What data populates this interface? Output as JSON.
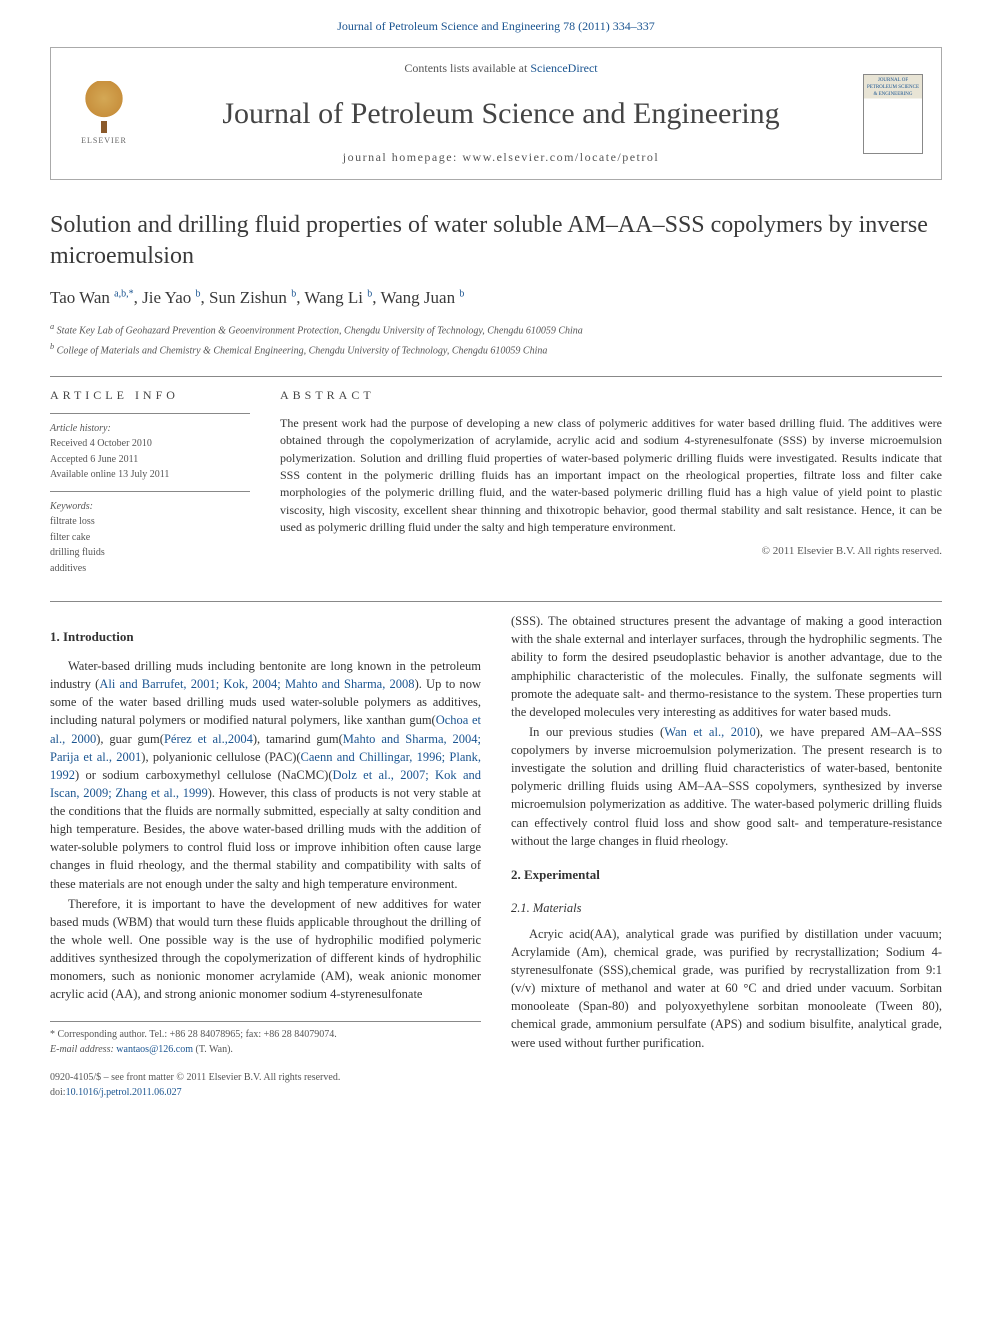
{
  "topLink": {
    "prefix": "",
    "citation": "Journal of Petroleum Science and Engineering 78 (2011) 334–337"
  },
  "header": {
    "contentsPrefix": "Contents lists available at ",
    "contentsLink": "ScienceDirect",
    "journalName": "Journal of Petroleum Science and Engineering",
    "homepagePrefix": "journal homepage: ",
    "homepageUrl": "www.elsevier.com/locate/petrol",
    "publisherLogoLabel": "ELSEVIER",
    "coverLabel": "JOURNAL OF PETROLEUM SCIENCE & ENGINEERING"
  },
  "article": {
    "title": "Solution and drilling fluid properties of water soluble AM–AA–SSS copolymers by inverse microemulsion",
    "authors": [
      {
        "name": "Tao Wan",
        "sup": "a,b,",
        "star": "*"
      },
      {
        "name": "Jie Yao",
        "sup": "b"
      },
      {
        "name": "Sun Zishun",
        "sup": "b"
      },
      {
        "name": "Wang Li",
        "sup": "b"
      },
      {
        "name": "Wang Juan",
        "sup": "b"
      }
    ],
    "affiliations": [
      {
        "sup": "a",
        "text": "State Key Lab of Geohazard Prevention & Geoenvironment Protection, Chengdu University of Technology, Chengdu 610059 China"
      },
      {
        "sup": "b",
        "text": "College of Materials and Chemistry & Chemical Engineering, Chengdu University of Technology, Chengdu 610059 China"
      }
    ]
  },
  "meta": {
    "articleInfoHead": "ARTICLE INFO",
    "historyLabel": "Article history:",
    "received": "Received 4 October 2010",
    "accepted": "Accepted 6 June 2011",
    "online": "Available online 13 July 2011",
    "keywordsLabel": "Keywords:",
    "keywords": [
      "filtrate loss",
      "filter cake",
      "drilling fluids",
      "additives"
    ]
  },
  "abstract": {
    "head": "ABSTRACT",
    "text": "The present work had the purpose of developing a new class of polymeric additives for water based drilling fluid. The additives were obtained through the copolymerization of acrylamide, acrylic acid and sodium 4-styrenesulfonate (SSS) by inverse microemulsion polymerization. Solution and drilling fluid properties of water-based polymeric drilling fluids were investigated. Results indicate that SSS content in the polymeric drilling fluids has an important impact on the rheological properties, filtrate loss and filter cake morphologies of the polymeric drilling fluid, and the water-based polymeric drilling fluid has a high value of yield point to plastic viscosity, high viscosity, excellent shear thinning and thixotropic behavior, good thermal stability and salt resistance. Hence, it can be used as polymeric drilling fluid under the salty and high temperature environment.",
    "copyright": "© 2011 Elsevier B.V. All rights reserved."
  },
  "sections": {
    "introHead": "1. Introduction",
    "intro_p1_a": "Water-based drilling muds including bentonite are long known in the petroleum industry (",
    "intro_p1_cite1": "Ali and Barrufet, 2001; Kok, 2004; Mahto and Sharma, 2008",
    "intro_p1_b": "). Up to now some of the water based drilling muds used water-soluble polymers as additives, including natural polymers or modified natural polymers, like xanthan gum(",
    "intro_p1_cite2": "Ochoa et al., 2000",
    "intro_p1_c": "), guar gum(",
    "intro_p1_cite3": "Pérez et al.,2004",
    "intro_p1_d": "), tamarind gum(",
    "intro_p1_cite4": "Mahto and Sharma, 2004; Parija et al., 2001",
    "intro_p1_e": "), polyanionic cellulose (PAC)(",
    "intro_p1_cite5": "Caenn and Chillingar, 1996; Plank, 1992",
    "intro_p1_f": ") or sodium carboxymethyl cellulose (NaCMC)(",
    "intro_p1_cite6": "Dolz et al., 2007; Kok and Iscan, 2009; Zhang et al., 1999",
    "intro_p1_g": "). However, this class of products is not very stable at the conditions that the fluids are normally submitted, especially at salty condition and high temperature. Besides, the above water-based drilling muds with the addition of water-soluble polymers to control fluid loss or improve inhibition often cause large changes in fluid rheology, and the thermal stability and compatibility with salts of these materials are not enough under the salty and high temperature environment.",
    "intro_p2": "Therefore, it is important to have the development of new additives for water based muds (WBM) that would turn these fluids applicable throughout the drilling of the whole well. One possible way is the use of hydrophilic modified polymeric additives synthesized through the copolymerization of different kinds of hydrophilic monomers, such as nonionic monomer acrylamide (AM), weak anionic monomer acrylic acid (AA), and strong anionic monomer sodium 4-styrenesulfonate",
    "intro_p2b": "(SSS). The obtained structures present the advantage of making a good interaction with the shale external and interlayer surfaces, through the hydrophilic segments. The ability to form the desired pseudoplastic behavior is another advantage, due to the amphiphilic characteristic of the molecules. Finally, the sulfonate segments will promote the adequate salt- and thermo-resistance to the system. These properties turn the developed molecules very interesting as additives for water based muds.",
    "intro_p3_a": "In our previous studies (",
    "intro_p3_cite": "Wan et al., 2010",
    "intro_p3_b": "), we have prepared AM–AA–SSS copolymers by inverse microemulsion polymerization. The present research is to investigate the solution and drilling fluid characteristics of water-based, bentonite polymeric drilling fluids using AM–AA–SSS copolymers, synthesized by inverse microemulsion polymerization as additive. The water-based polymeric drilling fluids can effectively control fluid loss and show good salt- and temperature-resistance without the large changes in fluid rheology.",
    "expHead": "2. Experimental",
    "matHead": "2.1. Materials",
    "mat_p1": "Acryic acid(AA), analytical grade was purified by distillation under vacuum; Acrylamide (Am), chemical grade, was purified by recrystallization; Sodium 4-styrenesulfonate (SSS),chemical grade, was purified by recrystallization from 9:1 (v/v) mixture of methanol and water at 60 °C and dried under vacuum. Sorbitan monooleate (Span-80) and polyoxyethylene sorbitan monooleate (Tween 80), chemical grade, ammonium persulfate (APS) and sodium bisulfite, analytical grade, were used without further purification."
  },
  "footnote": {
    "corrLabel": "* Corresponding author. Tel.: +86 28 84078965; fax: +86 28 84079074.",
    "emailLabel": "E-mail address: ",
    "email": "wantaos@126.com",
    "emailSuffix": " (T. Wan)."
  },
  "bottom": {
    "front": "0920-4105/$ – see front matter © 2011 Elsevier B.V. All rights reserved.",
    "doiLabel": "doi:",
    "doi": "10.1016/j.petrol.2011.06.027"
  },
  "colors": {
    "linkBlue": "#1a5490",
    "textGray": "#333333",
    "ruleGray": "#888888"
  }
}
